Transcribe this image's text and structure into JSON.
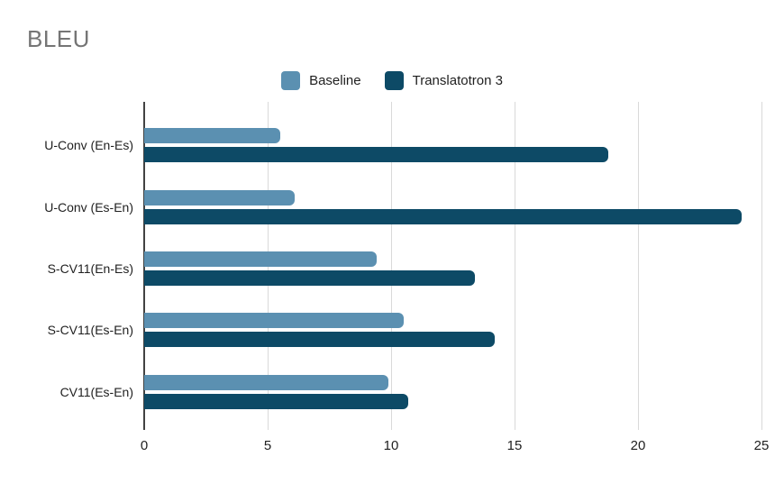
{
  "chart_data": {
    "type": "bar",
    "orientation": "horizontal",
    "title": "BLEU",
    "categories": [
      "U-Conv (En-Es)",
      "U-Conv (Es-En)",
      "S-CV11(En-Es)",
      "S-CV11(Es-En)",
      "CV11(Es-En)"
    ],
    "series": [
      {
        "name": "Baseline",
        "color": "#5b90b1",
        "values": [
          5.5,
          6.1,
          9.4,
          10.5,
          9.9
        ]
      },
      {
        "name": "Translatotron 3",
        "color": "#0d4a66",
        "values": [
          18.8,
          24.2,
          13.4,
          14.2,
          10.7
        ]
      }
    ],
    "xlim": [
      0,
      25
    ],
    "xticks": [
      0,
      5,
      10,
      15,
      20,
      25
    ],
    "grid": true,
    "legend_position": "top-center",
    "ylabel": "",
    "xlabel": ""
  },
  "colors": {
    "title_text": "#757575",
    "body_text": "#1f1f1f",
    "gridline": "#d9d9d9",
    "axis_line": "#424242",
    "background": "#ffffff"
  }
}
